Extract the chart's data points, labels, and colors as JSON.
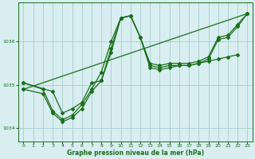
{
  "bg_color": "#d8eef0",
  "grid_color": "#a8cccc",
  "line_color": "#1a6e1a",
  "xlabel": "Graphe pression niveau de la mer (hPa)",
  "xlim": [
    -0.5,
    23.5
  ],
  "ylim": [
    1033.7,
    1036.9
  ],
  "yticks": [
    1034,
    1035,
    1036
  ],
  "xticks": [
    0,
    1,
    2,
    3,
    4,
    5,
    6,
    7,
    8,
    9,
    10,
    11,
    12,
    13,
    14,
    15,
    16,
    17,
    18,
    19,
    20,
    21,
    22,
    23
  ],
  "series1_x": [
    0,
    3,
    4,
    5,
    6,
    7,
    8,
    9,
    10,
    11,
    12,
    13,
    14,
    15,
    16,
    17,
    18,
    19,
    20,
    21,
    22
  ],
  "series1_y": [
    1035.05,
    1034.85,
    1034.35,
    1034.45,
    1034.6,
    1035.05,
    1035.1,
    1035.85,
    1036.55,
    1036.6,
    1036.1,
    1035.4,
    1035.35,
    1035.4,
    1035.45,
    1035.45,
    1035.5,
    1035.55,
    1035.6,
    1035.65,
    1035.7
  ],
  "series2_x": [
    0,
    2,
    3,
    4,
    5,
    6,
    7,
    8,
    9,
    10,
    11,
    12,
    13,
    14,
    15,
    16,
    17,
    18,
    19,
    20,
    21,
    22,
    23
  ],
  "series2_y": [
    1035.05,
    1034.9,
    1034.4,
    1034.2,
    1034.3,
    1034.55,
    1034.9,
    1035.3,
    1036.0,
    1036.55,
    1036.6,
    1036.1,
    1035.5,
    1035.45,
    1035.5,
    1035.5,
    1035.5,
    1035.55,
    1035.65,
    1036.1,
    1036.15,
    1036.4,
    1036.65
  ],
  "series3_x": [
    0,
    2,
    3,
    4,
    5,
    6,
    7,
    8,
    9,
    10,
    11,
    12,
    13,
    14,
    15,
    16,
    17,
    18,
    19,
    20,
    21,
    22,
    23
  ],
  "series3_y": [
    1034.9,
    1034.8,
    1034.35,
    1034.15,
    1034.25,
    1034.45,
    1034.85,
    1035.1,
    1035.75,
    1036.55,
    1036.6,
    1036.1,
    1035.45,
    1035.4,
    1035.45,
    1035.45,
    1035.45,
    1035.5,
    1035.6,
    1036.05,
    1036.1,
    1036.35,
    1036.65
  ],
  "series4_x": [
    0,
    23
  ],
  "series4_y": [
    1034.9,
    1036.65
  ],
  "marker": "D",
  "markersize": 2.0,
  "linewidth": 0.9
}
